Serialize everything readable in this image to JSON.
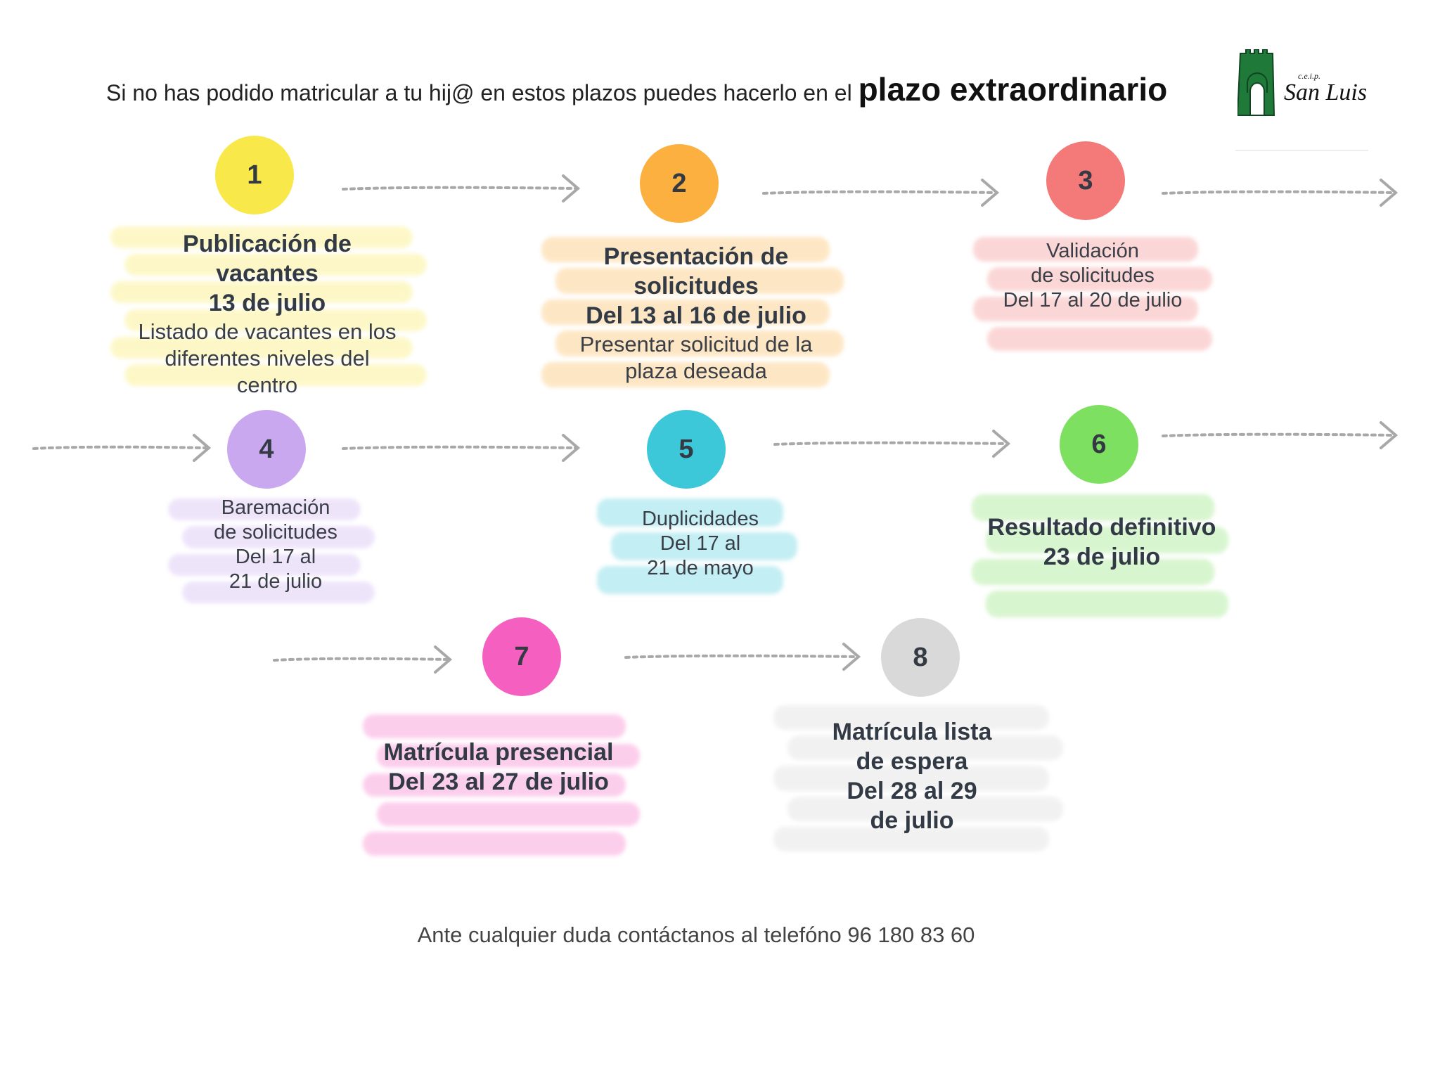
{
  "header": {
    "text": "Si no has podido matricular a tu hij@ en estos plazos puedes hacerlo en el ",
    "emphasis": "plazo extraordinario"
  },
  "logo": {
    "small_text": "c.e.i.p.",
    "name": "San Luis",
    "color": "#1f7a3a"
  },
  "steps": [
    {
      "number": "1",
      "color": "#f9e84a",
      "bold_lines": [
        "Publicación de",
        "vacantes",
        "13 de julio"
      ],
      "lines": [
        "Listado de vacantes en los",
        "diferentes niveles del",
        "centro"
      ]
    },
    {
      "number": "2",
      "color": "#fbb040",
      "bold_lines": [
        "Presentación de",
        "solicitudes",
        "Del 13 al 16 de julio"
      ],
      "lines": [
        "Presentar solicitud de la",
        "plaza deseada"
      ]
    },
    {
      "number": "3",
      "color": "#f47a7a",
      "bold_lines": [],
      "lines": [
        "Validación",
        "de solicitudes",
        "Del 17 al 20 de julio"
      ]
    },
    {
      "number": "4",
      "color": "#c9a8f0",
      "bold_lines": [],
      "lines": [
        "Baremación",
        "de solicitudes",
        "Del 17 al",
        "21 de julio"
      ]
    },
    {
      "number": "5",
      "color": "#3cc8d8",
      "bold_lines": [],
      "lines": [
        "Duplicidades",
        "Del 17 al",
        "21 de mayo"
      ]
    },
    {
      "number": "6",
      "color": "#7ee060",
      "bold_lines": [
        "Resultado definitivo",
        "23 de julio"
      ],
      "lines": []
    },
    {
      "number": "7",
      "color": "#f55fc0",
      "bold_lines": [
        "Matrícula presencial",
        "Del 23 al 27 de julio"
      ],
      "lines": []
    },
    {
      "number": "8",
      "color": "#d9d9d9",
      "bold_lines": [
        "Matrícula lista",
        "de espera",
        "Del 28 al 29",
        "de julio"
      ],
      "lines": []
    }
  ],
  "footer": "Ante cualquier duda contáctanos al telefóno 96 180 83 60"
}
